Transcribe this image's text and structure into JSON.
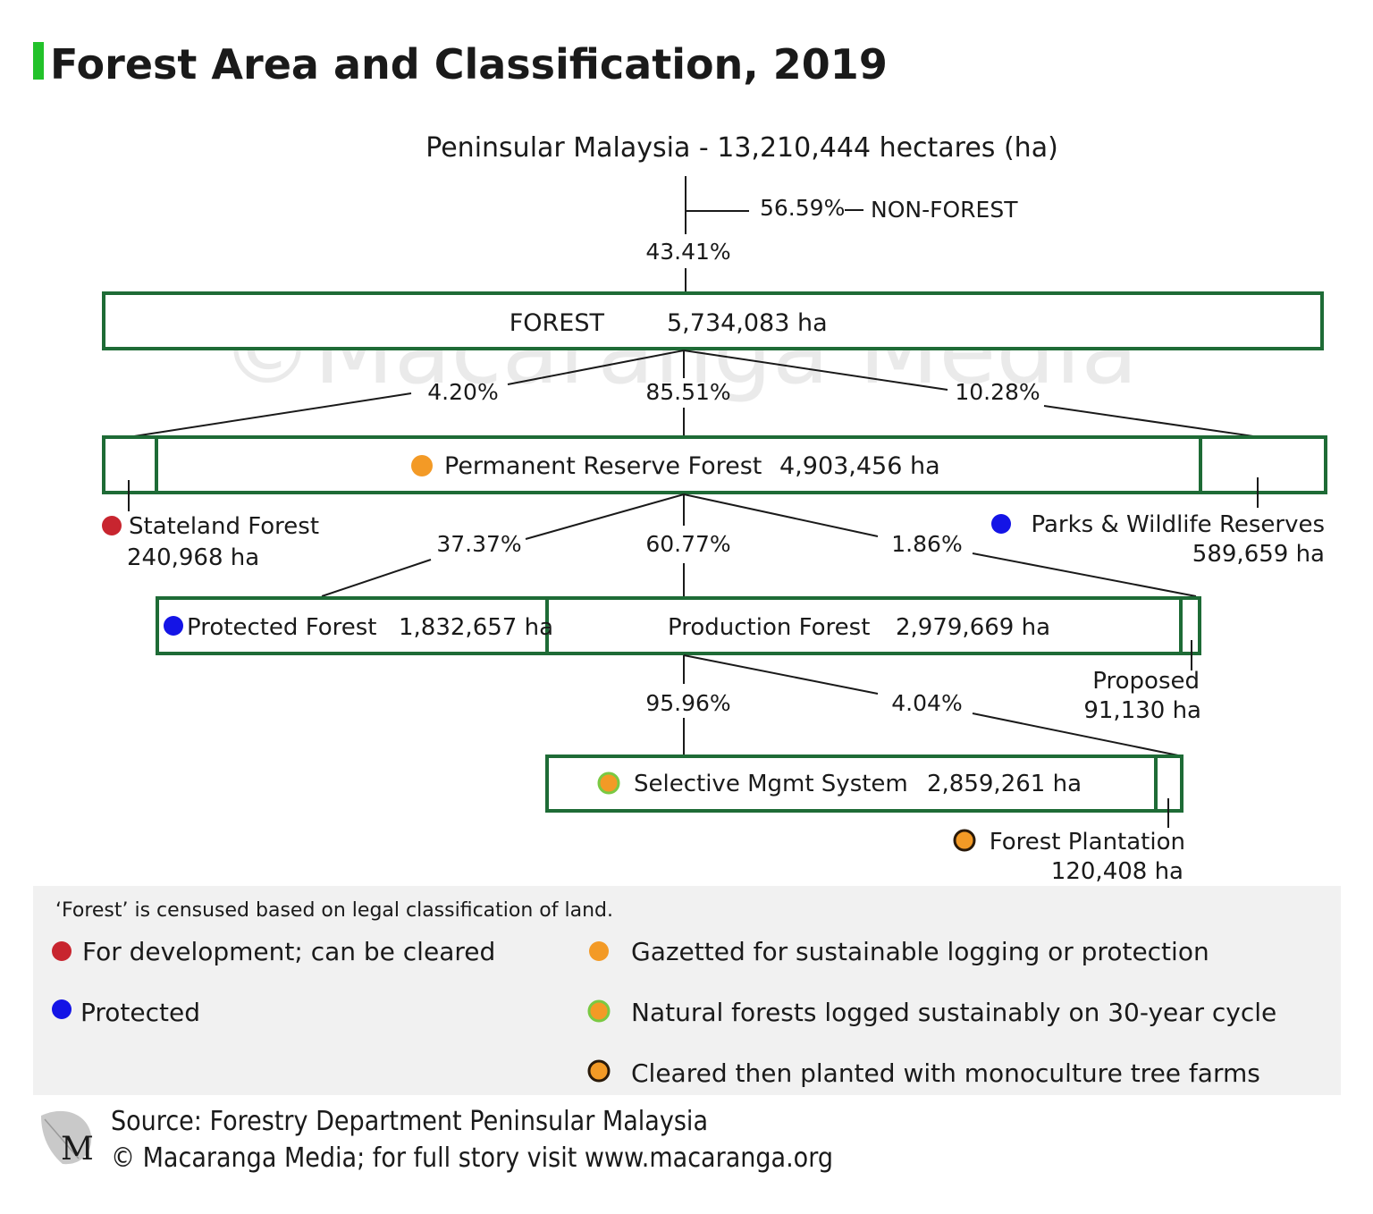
{
  "title": "Forest Area and Classification, 2019",
  "accent_color": "#22c22a",
  "box_border_color": "#1e6b36",
  "dot_colors": {
    "development": "#c8252f",
    "protected": "#1414e6",
    "gazetted": "#f39a26",
    "natural_logged": "#f39a26",
    "natural_logged_ring": "#7ac943",
    "plantation": "#f39a26",
    "plantation_ring": "#2a1a0a"
  },
  "watermark": "©Macaranga Media",
  "top": {
    "label": "Peninsular Malaysia - 13,210,444 hectares (ha)",
    "non_forest_pct": "56.59%",
    "non_forest_label": "NON-FOREST",
    "forest_pct": "43.41%"
  },
  "forest": {
    "name": "FOREST",
    "value": "5,734,083 ha"
  },
  "forest_split": {
    "stateland_pct": "4.20%",
    "prf_pct": "85.51%",
    "parks_pct": "10.28%"
  },
  "prf": {
    "name": "Permanent Reserve Forest",
    "value": "4,903,456 ha",
    "icon": "orange-dot-icon"
  },
  "stateland": {
    "name": "Stateland Forest",
    "value": "240,968 ha",
    "icon": "red-dot-icon"
  },
  "parks": {
    "name": "Parks & Wildlife Reserves",
    "value": "589,659 ha",
    "icon": "blue-dot-icon"
  },
  "prf_split": {
    "protected_pct": "37.37%",
    "production_pct": "60.77%",
    "proposed_pct": "1.86%"
  },
  "protected_forest": {
    "name": "Protected Forest",
    "value": "1,832,657 ha",
    "icon": "blue-dot-icon"
  },
  "production_forest": {
    "name": "Production Forest",
    "value": "2,979,669 ha"
  },
  "proposed": {
    "name": "Proposed",
    "value": "91,130 ha"
  },
  "production_split": {
    "sms_pct": "95.96%",
    "plantation_pct": "4.04%"
  },
  "sms": {
    "name": "Selective Mgmt System",
    "value": "2,859,261 ha",
    "icon": "green-ring-orange-dot-icon"
  },
  "plantation": {
    "name": "Forest Plantation",
    "value": "120,408 ha",
    "icon": "dark-ring-orange-dot-icon"
  },
  "legend": {
    "note": "‘Forest’ is censused based on legal classification of land.",
    "items": [
      {
        "icon": "red-dot-icon",
        "label": "For development; can be cleared"
      },
      {
        "icon": "orange-dot-icon",
        "label": "Gazetted for sustainable logging or protection"
      },
      {
        "icon": "blue-dot-icon",
        "label": "Protected"
      },
      {
        "icon": "green-ring-orange-dot-icon",
        "label": "Natural forests logged sustainably on 30-year cycle"
      },
      {
        "icon": "dark-ring-orange-dot-icon",
        "label": "Cleared then planted with monoculture tree farms"
      }
    ]
  },
  "footer": {
    "logo_letter": "M",
    "source": "Source: Forestry Department Peninsular Malaysia",
    "credit": "© Macaranga Media; for full story visit www.macaranga.org"
  }
}
